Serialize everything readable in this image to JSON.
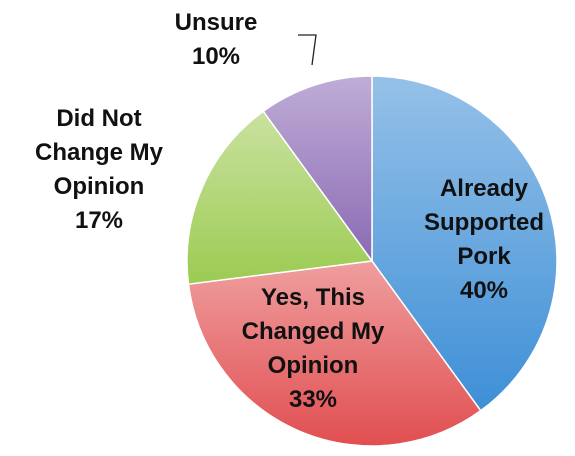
{
  "chart_data": {
    "type": "pie",
    "slices": [
      {
        "label_lines": [
          "Already",
          "Supported",
          "Pork"
        ],
        "value": 40,
        "value_label": "40%",
        "color": "#3e8fd6"
      },
      {
        "label_lines": [
          "Yes, This",
          "Changed My",
          "Opinion"
        ],
        "value": 33,
        "value_label": "33%",
        "color": "#e14e50"
      },
      {
        "label_lines": [
          "Did Not",
          "Change My",
          "Opinion"
        ],
        "value": 17,
        "value_label": "17%",
        "color": "#9ccb52"
      },
      {
        "label_lines": [
          "Unsure"
        ],
        "value": 10,
        "value_label": "10%",
        "color": "#8a6ab4"
      }
    ],
    "start_angle_deg": 0,
    "direction": "clockwise",
    "legend": "none"
  }
}
